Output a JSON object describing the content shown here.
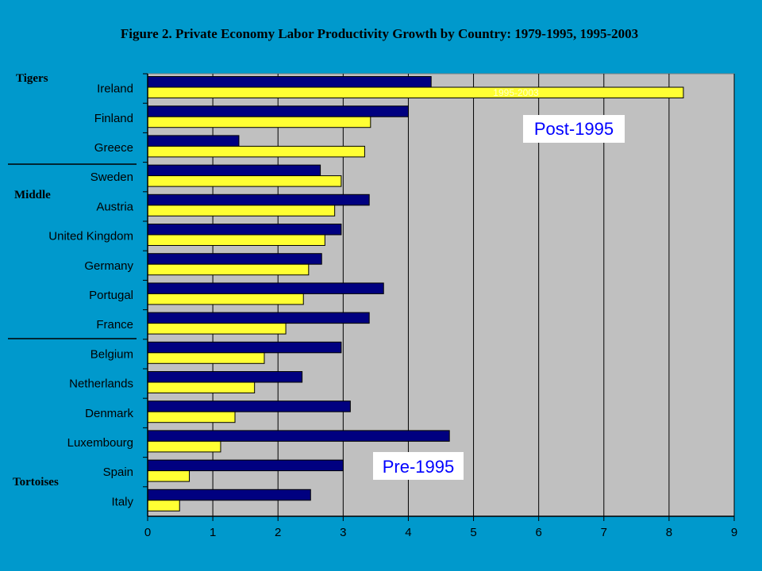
{
  "title": "Figure 2.  Private Economy Labor Productivity Growth by Country: 1979-1995, 1995-2003",
  "group_labels": [
    "Tigers",
    "Middle",
    "Tortoises"
  ],
  "callouts": {
    "post": "Post-1995",
    "pre": "Pre-1995"
  },
  "colors": {
    "background": "#0099cc",
    "plot_area": "#c0c0c0",
    "series_1979_1995": "#000080",
    "series_1995_2003": "#ffff33"
  },
  "chart_data": {
    "type": "bar",
    "orientation": "horizontal",
    "title": "Figure 2.  Private Economy Labor Productivity Growth by Country: 1979-1995, 1995-2003",
    "categories": [
      "Ireland",
      "Finland",
      "Greece",
      "Sweden",
      "Austria",
      "United Kingdom",
      "Germany",
      "Portugal",
      "France",
      "Belgium",
      "Netherlands",
      "Denmark",
      "Luxembourg",
      "Spain",
      "Italy"
    ],
    "category_display": [
      "Ireland",
      "Finland",
      "Greece",
      "Sweden",
      "Austria",
      "United Kingdom",
      "Germany",
      "Portugal",
      "France",
      "Belgium",
      "Netherlands",
      "Denmark",
      "Luxembourg",
      "Spain",
      "Italy"
    ],
    "series": [
      {
        "name": "1979-1995",
        "color": "#000080",
        "values": [
          4.35,
          4.0,
          1.4,
          2.65,
          3.4,
          2.97,
          2.67,
          3.62,
          3.4,
          2.97,
          2.37,
          3.11,
          4.63,
          3.0,
          2.5
        ]
      },
      {
        "name": "1995-2003",
        "color": "#ffff33",
        "values": [
          8.22,
          3.42,
          3.33,
          2.97,
          2.87,
          2.72,
          2.47,
          2.39,
          2.12,
          1.79,
          1.64,
          1.34,
          1.12,
          0.64,
          0.49
        ]
      }
    ],
    "xlim": [
      0,
      9
    ],
    "xticks": [
      0,
      1,
      2,
      3,
      4,
      5,
      6,
      7,
      8,
      9
    ],
    "xlabel": "",
    "ylabel": "",
    "grid": true,
    "groups": [
      {
        "label": "Tigers",
        "members": [
          "Ireland",
          "Finland",
          "Greece"
        ]
      },
      {
        "label": "Middle",
        "members": [
          "Sweden",
          "Austria",
          "United Kingdom",
          "Germany",
          "Portugal",
          "France"
        ]
      },
      {
        "label": "Tortoises",
        "members": [
          "Belgium",
          "Netherlands",
          "Denmark",
          "Luxembourg",
          "Spain",
          "Italy"
        ]
      }
    ]
  }
}
